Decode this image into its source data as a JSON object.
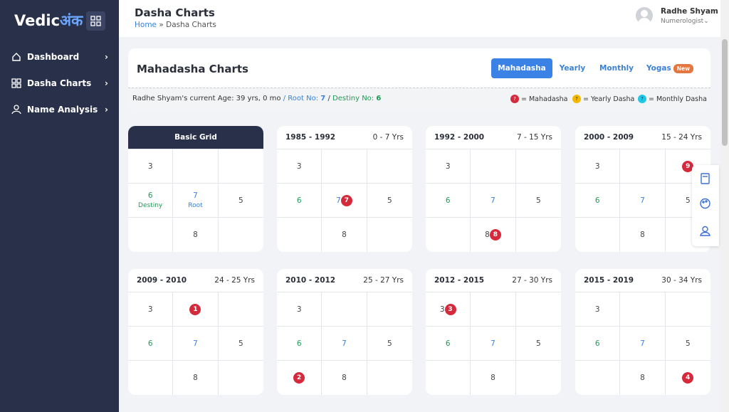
{
  "sidebar": {
    "logo": {
      "text": "Vedic",
      "accent": "अंक"
    },
    "nav": [
      "Dashboard",
      "Dasha Charts",
      "Name Analysis"
    ]
  },
  "header": {
    "title": "Dasha Charts",
    "breadcrumb": {
      "home": "Home",
      "separator": "»",
      "current": "Dasha Charts"
    },
    "user": {
      "name": "Radhe Shyam",
      "role": "Numerologist"
    }
  },
  "panel": {
    "title": "Mahadasha Charts",
    "tabs": [
      "Mahadasha",
      "Yearly",
      "Monthly",
      "Yogas"
    ],
    "badge": "New",
    "info": {
      "age": "Radhe Shyam's current Age: 39 yrs, 0 mo",
      "sep": "/",
      "root_label": "Root No:",
      "root": "7",
      "destiny_label": "Destiny No:",
      "destiny": "6"
    },
    "legend": {
      "icon": "?",
      "items": [
        "= Mahadasha",
        "= Yearly Dasha",
        "= Monthly Dasha"
      ]
    }
  },
  "grids": [
    {
      "title": "Basic Grid",
      "cells": [
        {
          "text": "3"
        },
        {},
        {},
        {
          "text": "6",
          "sub": "Destiny"
        },
        {
          "text": "7",
          "sub": "Root"
        },
        {
          "text": "5"
        },
        {},
        {
          "text": "8"
        },
        {}
      ]
    },
    {
      "title": "1985 - 1992",
      "range": "0 - 7 Yrs",
      "cells": [
        {
          "text": "3"
        },
        {},
        {},
        {
          "text": "6"
        },
        {
          "text": "7",
          "badge": "7"
        },
        {
          "text": "5"
        },
        {},
        {
          "text": "8"
        },
        {}
      ]
    },
    {
      "title": "1992 - 2000",
      "range": "7 - 15 Yrs",
      "cells": [
        {
          "text": "3"
        },
        {},
        {},
        {
          "text": "6"
        },
        {
          "text": "7"
        },
        {
          "text": "5"
        },
        {},
        {
          "text": "8",
          "badge": "8"
        },
        {}
      ]
    },
    {
      "title": "2000 - 2009",
      "range": "15 - 24 Yrs",
      "cells": [
        {
          "text": "3"
        },
        {},
        {
          "badge": "9"
        },
        {
          "text": "6"
        },
        {
          "text": "7"
        },
        {
          "text": "5"
        },
        {},
        {
          "text": "8"
        },
        {}
      ]
    },
    {
      "title": "2009 - 2010",
      "range": "24 - 25 Yrs",
      "cells": [
        {
          "text": "3"
        },
        {
          "badge": "1"
        },
        {},
        {
          "text": "6"
        },
        {
          "text": "7"
        },
        {
          "text": "5"
        },
        {},
        {
          "text": "8"
        },
        {}
      ]
    },
    {
      "title": "2010 - 2012",
      "range": "25 - 27 Yrs",
      "cells": [
        {
          "text": "3"
        },
        {},
        {},
        {
          "text": "6"
        },
        {
          "text": "7"
        },
        {
          "text": "5"
        },
        {
          "badge": "2"
        },
        {
          "text": "8"
        },
        {}
      ]
    },
    {
      "title": "2012 - 2015",
      "range": "27 - 30 Yrs",
      "cells": [
        {
          "text": "3",
          "badge": "3"
        },
        {},
        {},
        {
          "text": "6"
        },
        {
          "text": "7"
        },
        {
          "text": "5"
        },
        {},
        {
          "text": "8"
        },
        {}
      ]
    },
    {
      "title": "2015 - 2019",
      "range": "30 - 34 Yrs",
      "cells": [
        {
          "text": "3"
        },
        {},
        {},
        {
          "text": "6"
        },
        {
          "text": "7"
        },
        {
          "text": "5"
        },
        {},
        {
          "text": "8"
        },
        {
          "badge": "4"
        }
      ]
    }
  ]
}
